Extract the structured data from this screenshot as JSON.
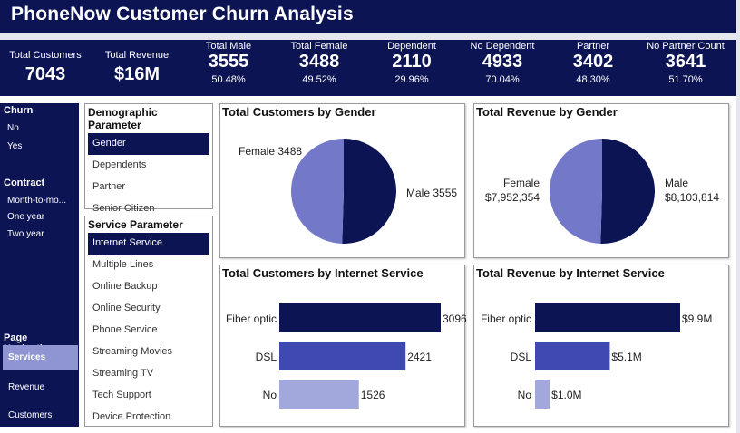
{
  "header": {
    "title": "PhoneNow Customer Churn Analysis"
  },
  "kpis": [
    {
      "label": "Total Customers",
      "value": "7043",
      "pct": ""
    },
    {
      "label": "Total Revenue",
      "value": "$16M",
      "pct": ""
    },
    {
      "label": "Total Male",
      "value": "3555",
      "pct": "50.48%"
    },
    {
      "label": "Total Female",
      "value": "3488",
      "pct": "49.52%"
    },
    {
      "label": "Dependent",
      "value": "2110",
      "pct": "29.96%"
    },
    {
      "label": "No Dependent",
      "value": "4933",
      "pct": "70.04%"
    },
    {
      "label": "Partner",
      "value": "3402",
      "pct": "48.30%"
    },
    {
      "label": "No Partner Count",
      "value": "3641",
      "pct": "51.70%"
    }
  ],
  "sidebar": {
    "churn_title": "Churn",
    "churn_options": [
      "No",
      "Yes"
    ],
    "contract_title": "Contract",
    "contract_options": [
      "Month-to-mo...",
      "One year",
      "Two year"
    ],
    "nav_title": "Page Navigation",
    "nav_items": [
      "Services",
      "Revenue",
      "Customers"
    ],
    "nav_active": "Services"
  },
  "demographic": {
    "title": "Demographic Parameter",
    "items": [
      "Gender",
      "Dependents",
      "Partner",
      "Senior Citizen"
    ],
    "selected": "Gender"
  },
  "service": {
    "title": "Service Parameter",
    "items": [
      "Internet Service",
      "Multiple Lines",
      "Online Backup",
      "Online Security",
      "Phone Service",
      "Streaming Movies",
      "Streaming TV",
      "Tech Support",
      "Device Protection"
    ],
    "selected": "Internet Service"
  },
  "colors": {
    "navy": "#0c1454",
    "lavender": "#7478c8",
    "royal": "#3e49b2",
    "light_lavender": "#a3a8dc",
    "nav_active": "#8e95d2"
  },
  "chart_data": [
    {
      "type": "pie",
      "title": "Total Customers by Gender",
      "categories": [
        "Female",
        "Male"
      ],
      "values": [
        3488,
        3555
      ],
      "labels": [
        "Female 3488",
        "Male 3555"
      ]
    },
    {
      "type": "pie",
      "title": "Total Revenue by Gender",
      "categories": [
        "Female",
        "Male"
      ],
      "values": [
        7952354,
        8103814
      ],
      "labels": [
        [
          "Female",
          "$7,952,354"
        ],
        [
          "Male",
          "$8,103,814"
        ]
      ]
    },
    {
      "type": "bar",
      "orientation": "horizontal",
      "title": "Total Customers by Internet Service",
      "categories": [
        "Fiber optic",
        "DSL",
        "No"
      ],
      "values": [
        3096,
        2421,
        1526
      ],
      "data_labels": [
        "3096",
        "2421",
        "1526"
      ]
    },
    {
      "type": "bar",
      "orientation": "horizontal",
      "title": "Total Revenue by Internet Service",
      "categories": [
        "Fiber optic",
        "DSL",
        "No"
      ],
      "values": [
        9900000,
        5100000,
        1000000
      ],
      "data_labels": [
        "$9.9M",
        "$5.1M",
        "$1.0M"
      ]
    }
  ]
}
